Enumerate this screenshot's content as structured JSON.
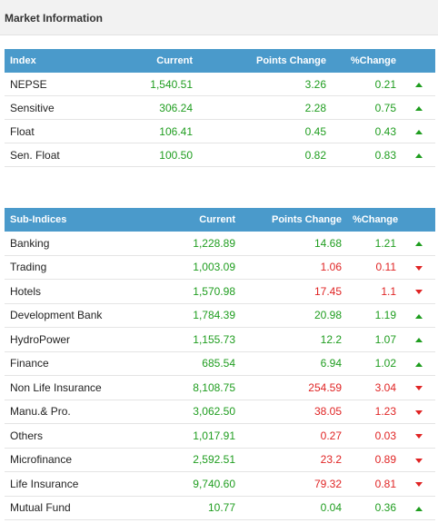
{
  "panel": {
    "title": "Market Information"
  },
  "index_table": {
    "headers": [
      "Index",
      "Current",
      "Points Change",
      "%Change"
    ],
    "rows": [
      {
        "name": "NEPSE",
        "current": "1,540.51",
        "points": "3.26",
        "pct": "0.21",
        "direction": "up"
      },
      {
        "name": "Sensitive",
        "current": "306.24",
        "points": "2.28",
        "pct": "0.75",
        "direction": "up"
      },
      {
        "name": "Float",
        "current": "106.41",
        "points": "0.45",
        "pct": "0.43",
        "direction": "up"
      },
      {
        "name": "Sen. Float",
        "current": "100.50",
        "points": "0.82",
        "pct": "0.83",
        "direction": "up"
      }
    ]
  },
  "sub_table": {
    "headers": [
      "Sub-Indices",
      "Current",
      "Points Change",
      "%Change"
    ],
    "rows": [
      {
        "name": "Banking",
        "current": "1,228.89",
        "points": "14.68",
        "pct": "1.21",
        "direction": "up"
      },
      {
        "name": "Trading",
        "current": "1,003.09",
        "points": "1.06",
        "pct": "0.11",
        "direction": "down"
      },
      {
        "name": "Hotels",
        "current": "1,570.98",
        "points": "17.45",
        "pct": "1.1",
        "direction": "down"
      },
      {
        "name": "Development Bank",
        "current": "1,784.39",
        "points": "20.98",
        "pct": "1.19",
        "direction": "up"
      },
      {
        "name": "HydroPower",
        "current": "1,155.73",
        "points": "12.2",
        "pct": "1.07",
        "direction": "up"
      },
      {
        "name": "Finance",
        "current": "685.54",
        "points": "6.94",
        "pct": "1.02",
        "direction": "up"
      },
      {
        "name": "Non Life Insurance",
        "current": "8,108.75",
        "points": "254.59",
        "pct": "3.04",
        "direction": "down"
      },
      {
        "name": "Manu.& Pro.",
        "current": "3,062.50",
        "points": "38.05",
        "pct": "1.23",
        "direction": "down"
      },
      {
        "name": "Others",
        "current": "1,017.91",
        "points": "0.27",
        "pct": "0.03",
        "direction": "down"
      },
      {
        "name": "Microfinance",
        "current": "2,592.51",
        "points": "23.2",
        "pct": "0.89",
        "direction": "down"
      },
      {
        "name": "Life Insurance",
        "current": "9,740.60",
        "points": "79.32",
        "pct": "0.81",
        "direction": "down"
      },
      {
        "name": "Mutual Fund",
        "current": "10.77",
        "points": "0.04",
        "pct": "0.36",
        "direction": "up"
      }
    ]
  },
  "colors": {
    "header_bg": "#4a9acb",
    "up": "#1f9d1f",
    "down": "#e02424"
  }
}
